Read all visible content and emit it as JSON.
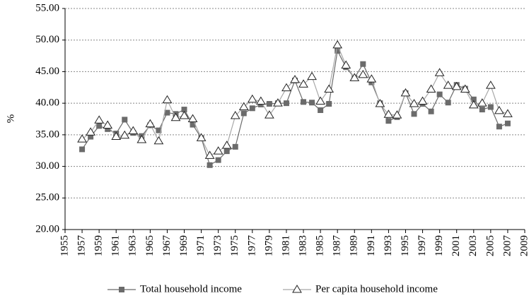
{
  "chart_data": {
    "type": "line",
    "y_label": "%",
    "x": [
      1957,
      1958,
      1959,
      1960,
      1961,
      1962,
      1963,
      1964,
      1965,
      1966,
      1967,
      1968,
      1969,
      1970,
      1971,
      1972,
      1973,
      1974,
      1975,
      1976,
      1977,
      1978,
      1979,
      1980,
      1981,
      1982,
      1983,
      1984,
      1985,
      1986,
      1987,
      1988,
      1989,
      1990,
      1991,
      1992,
      1993,
      1994,
      1995,
      1996,
      1997,
      1998,
      1999,
      2000,
      2001,
      2002,
      2003,
      2004,
      2005,
      2006,
      2007
    ],
    "series": [
      {
        "name": "Total household income",
        "color": "#6b6b6b",
        "marker": "square",
        "values": [
          32.7,
          34.7,
          36.4,
          35.9,
          35.2,
          37.4,
          35.3,
          34.8,
          36.5,
          35.7,
          38.5,
          38.3,
          39.0,
          36.6,
          34.5,
          30.2,
          31.0,
          32.4,
          33.1,
          38.4,
          39.2,
          39.8,
          39.9,
          40.0,
          40.0,
          43.6,
          40.2,
          40.1,
          38.9,
          39.9,
          48.3,
          45.7,
          44.0,
          46.2,
          43.3,
          40.0,
          37.2,
          37.8,
          41.6,
          38.3,
          39.9,
          38.7,
          41.4,
          40.1,
          42.9,
          42.3,
          40.6,
          39.0,
          39.4,
          36.3,
          36.8
        ]
      },
      {
        "name": "Per capita household income",
        "color": "#a8a8a8",
        "marker": "triangle",
        "values": [
          34.3,
          35.4,
          37.3,
          36.5,
          34.7,
          34.9,
          35.6,
          34.2,
          36.7,
          34.0,
          40.5,
          37.7,
          38.0,
          37.5,
          34.5,
          31.7,
          32.4,
          33.3,
          38.0,
          39.4,
          40.6,
          40.3,
          38.1,
          40.0,
          42.4,
          43.7,
          43.0,
          44.2,
          40.3,
          42.2,
          49.2,
          46.0,
          44.0,
          44.5,
          43.8,
          39.9,
          38.2,
          38.1,
          41.6,
          39.9,
          40.3,
          42.2,
          44.8,
          42.8,
          42.6,
          42.2,
          39.7,
          40.0,
          42.8,
          38.8,
          38.3
        ]
      }
    ],
    "xlim": [
      1955,
      2009
    ],
    "xticks": [
      1955,
      1957,
      1959,
      1961,
      1963,
      1965,
      1967,
      1969,
      1971,
      1973,
      1975,
      1977,
      1979,
      1981,
      1983,
      1985,
      1987,
      1989,
      1991,
      1993,
      1995,
      1997,
      1999,
      2001,
      2003,
      2005,
      2007,
      2009
    ],
    "ylim": [
      20,
      55
    ],
    "yticks": [
      {
        "value": 20,
        "label": "20.00"
      },
      {
        "value": 25,
        "label": "25.00"
      },
      {
        "value": 30,
        "label": "30.00"
      },
      {
        "value": 35,
        "label": "35.00"
      },
      {
        "value": 40,
        "label": "40.00"
      },
      {
        "value": 45,
        "label": "45.00"
      },
      {
        "value": 50,
        "label": "50.00"
      },
      {
        "value": 55,
        "label": "55.00"
      }
    ],
    "grid": true,
    "legend": "bottom"
  }
}
